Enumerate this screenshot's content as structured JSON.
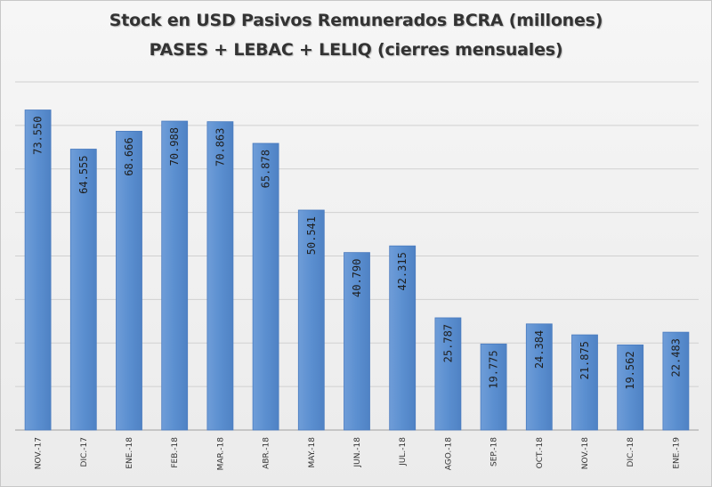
{
  "chart_data": {
    "type": "bar",
    "title": "Stock en USD Pasivos Remunerados BCRA (millones)",
    "subtitle": "PASES + LEBAC + LELIQ (cierres mensuales)",
    "categories": [
      "NOV.-17",
      "DIC.-17",
      "ENE.-18",
      "FEB.-18",
      "MAR.-18",
      "ABR.-18",
      "MAY.-18",
      "JUN.-18",
      "JUL.-18",
      "AGO.-18",
      "SEP.-18",
      "OCT.-18",
      "NOV.-18",
      "DIC.-18",
      "ENE.-19"
    ],
    "values": [
      73550,
      64555,
      68666,
      70988,
      70863,
      65878,
      50541,
      40790,
      42315,
      25787,
      19775,
      24384,
      21875,
      19562,
      22483
    ],
    "data_labels": [
      "73.550",
      "64.555",
      "68.666",
      "70.988",
      "70.863",
      "65.878",
      "50.541",
      "40.790",
      "42.315",
      "25.787",
      "19.775",
      "24.384",
      "21.875",
      "19.562",
      "22.483"
    ],
    "ylim": [
      0,
      80000
    ],
    "grid": true,
    "xlabel": "",
    "ylabel": "",
    "colors": {
      "bar": "#5b8fd0",
      "bar_top": "#7ba7df",
      "bar_stroke": "#4a7bbf"
    }
  }
}
